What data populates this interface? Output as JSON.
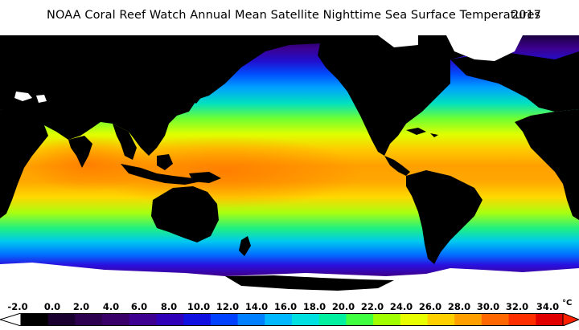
{
  "title": "NOAA Coral Reef Watch Annual Mean Satellite Nighttime Sea Surface Temperatures",
  "year": "2017",
  "legend": {
    "unit": "°C",
    "ticks": [
      "-2.0",
      "0.0",
      "2.0",
      "4.0",
      "6.0",
      "8.0",
      "10.0",
      "12.0",
      "14.0",
      "16.0",
      "18.0",
      "20.0",
      "22.0",
      "24.0",
      "26.0",
      "28.0",
      "30.0",
      "32.0",
      "34.0"
    ],
    "colors": [
      "#000000",
      "#1a0030",
      "#2d0050",
      "#3a006a",
      "#3d0090",
      "#3000b8",
      "#1010e0",
      "#0040ff",
      "#0080ff",
      "#00b8ff",
      "#00e0e0",
      "#00f0a0",
      "#40ff40",
      "#a0ff00",
      "#e8ff00",
      "#ffd000",
      "#ffa000",
      "#ff6800",
      "#ff3000",
      "#e00000"
    ]
  },
  "icons": {
    "legend_low_arrow": "left-triangle-icon",
    "legend_high_arrow": "right-triangle-icon"
  }
}
